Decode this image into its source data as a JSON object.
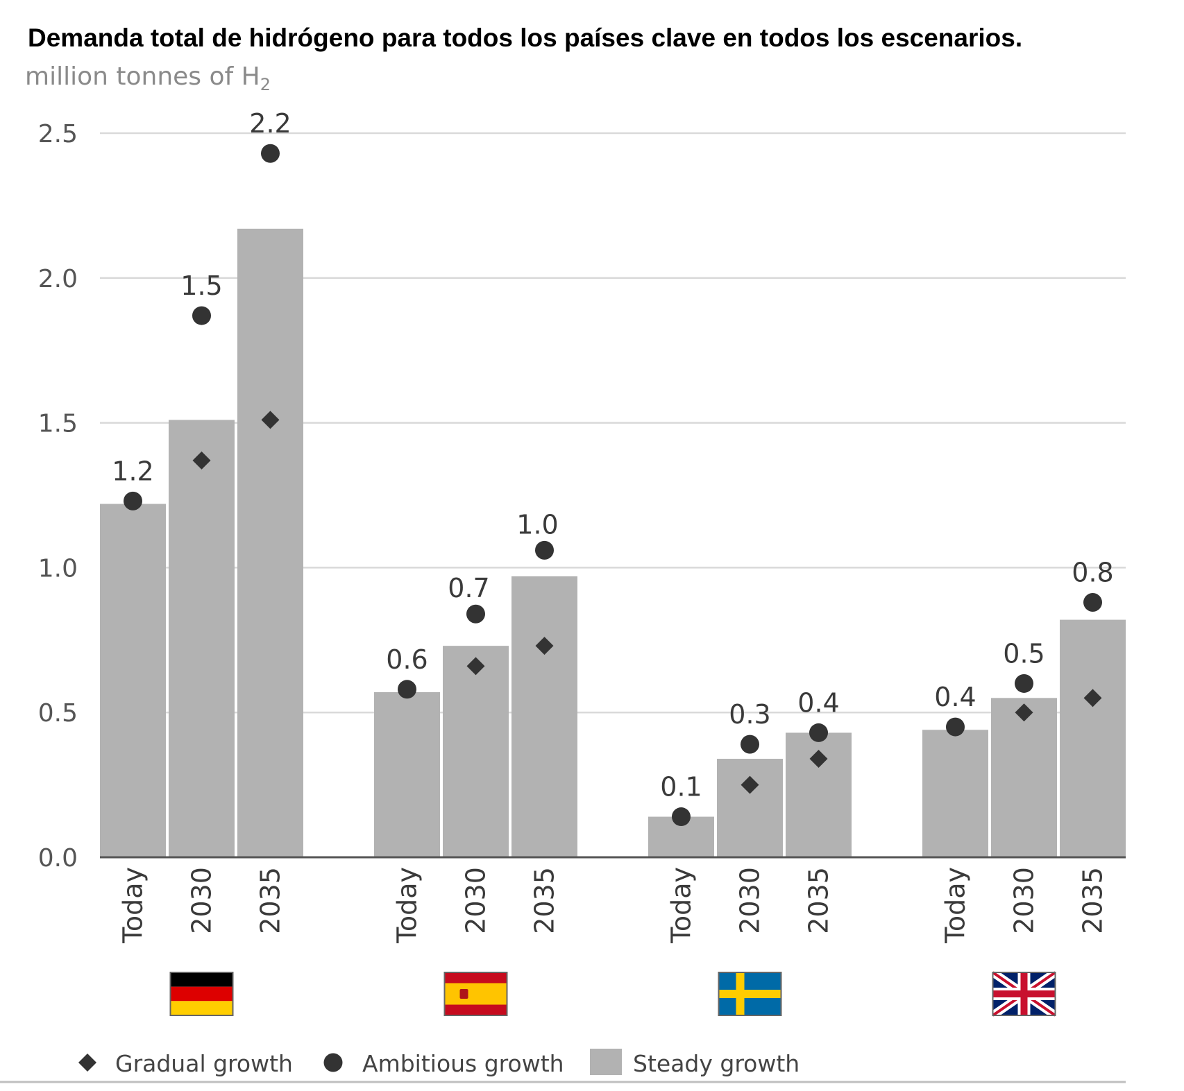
{
  "chart_data": {
    "type": "bar",
    "title": "Demanda total de hidrógeno para todos los países clave en todos los escenarios.",
    "unit": "million tonnes of H",
    "unit_subscript": "2",
    "ylim": [
      0,
      2.5
    ],
    "y_ticks": [
      "0.0",
      "0.5",
      "1.0",
      "1.5",
      "2.0",
      "2.5"
    ],
    "grid": true,
    "legend_position": "bottom-left",
    "colors": {
      "bar": "#b2b2b2",
      "marker": "#333333",
      "grid": "#d9d9d9",
      "axis": "#555555"
    },
    "groups": [
      {
        "country": "Germany",
        "flag": "de",
        "categories": [
          "Today",
          "2030",
          "2035"
        ],
        "steady": [
          1.22,
          1.51,
          2.17
        ],
        "ambitious": [
          1.23,
          1.87,
          2.43
        ],
        "gradual": [
          null,
          1.37,
          1.51
        ],
        "labels": [
          "1.2",
          "1.5",
          "2.2"
        ]
      },
      {
        "country": "Spain",
        "flag": "es",
        "categories": [
          "Today",
          "2030",
          "2035"
        ],
        "steady": [
          0.57,
          0.73,
          0.97
        ],
        "ambitious": [
          0.58,
          0.84,
          1.06
        ],
        "gradual": [
          null,
          0.66,
          0.73
        ],
        "labels": [
          "0.6",
          "0.7",
          "1.0"
        ]
      },
      {
        "country": "Sweden",
        "flag": "se",
        "categories": [
          "Today",
          "2030",
          "2035"
        ],
        "steady": [
          0.14,
          0.34,
          0.43
        ],
        "ambitious": [
          0.14,
          0.39,
          0.43
        ],
        "gradual": [
          null,
          0.25,
          0.34
        ],
        "labels": [
          "0.1",
          "0.3",
          "0.4"
        ]
      },
      {
        "country": "United Kingdom",
        "flag": "gb",
        "categories": [
          "Today",
          "2030",
          "2035"
        ],
        "steady": [
          0.44,
          0.55,
          0.82
        ],
        "ambitious": [
          0.45,
          0.6,
          0.88
        ],
        "gradual": [
          null,
          0.5,
          0.55
        ],
        "labels": [
          "0.4",
          "0.5",
          "0.8"
        ]
      }
    ],
    "legend": [
      {
        "key": "gradual",
        "label": "Gradual growth",
        "marker": "diamond"
      },
      {
        "key": "ambitious",
        "label": "Ambitious growth",
        "marker": "circle"
      },
      {
        "key": "steady",
        "label": "Steady growth",
        "marker": "square"
      }
    ]
  }
}
